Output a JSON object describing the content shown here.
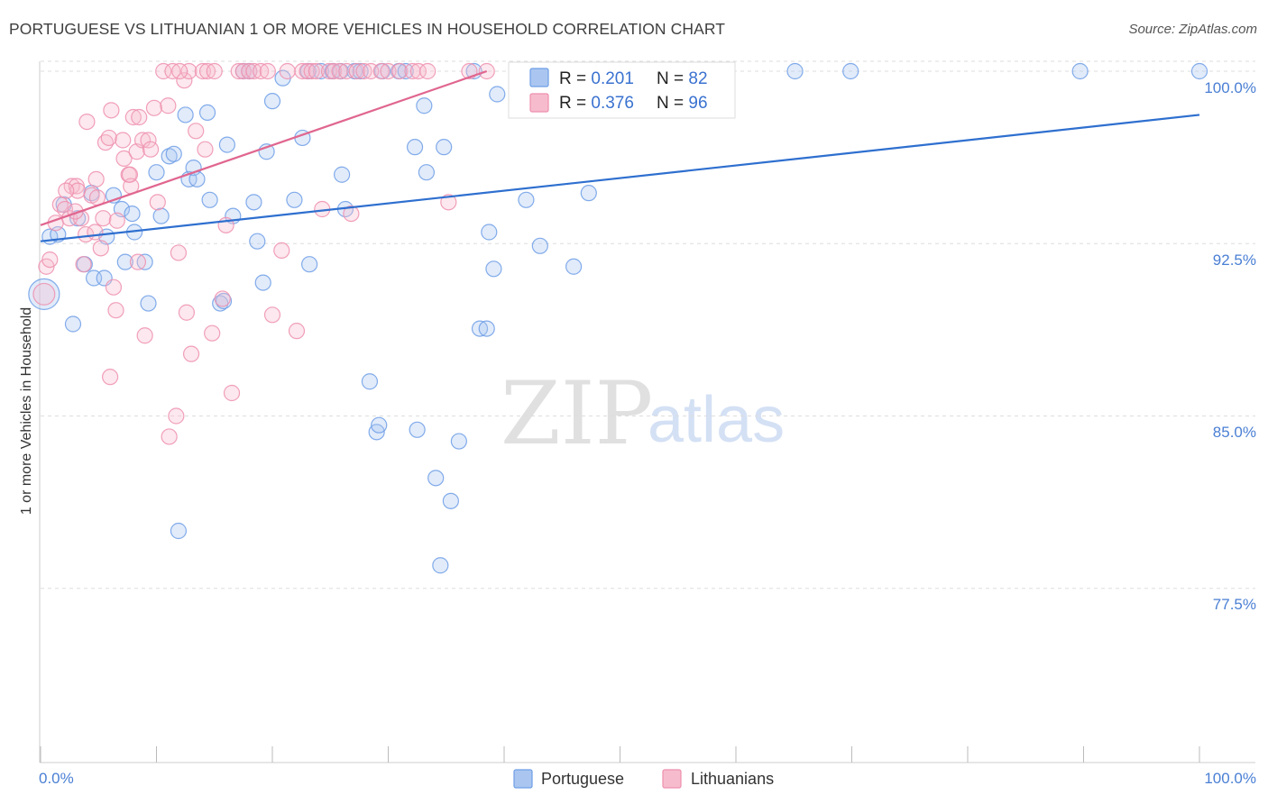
{
  "header": {
    "title": "PORTUGUESE VS LITHUANIAN 1 OR MORE VEHICLES IN HOUSEHOLD CORRELATION CHART",
    "source": "Source: ZipAtlas.com"
  },
  "watermark": {
    "part1": "ZIP",
    "part2": "atlas"
  },
  "colors": {
    "blue": "#6d9ee6",
    "blue_fill": "#aac6f0",
    "blue_line": "#2e6fcf",
    "pink": "#ee8fae",
    "pink_fill": "#f6bccd",
    "pink_line": "#e0668f",
    "tick_text": "#4a7fd4",
    "grid": "#dddddd"
  },
  "legend": {
    "rows": [
      {
        "r_label": "R = ",
        "r_value": "0.201",
        "n_label": "N = ",
        "n_value": "82",
        "series": "blue"
      },
      {
        "r_label": "R = ",
        "r_value": "0.376",
        "n_label": "N = ",
        "n_value": "96",
        "series": "pink"
      }
    ]
  },
  "bottom_legend": {
    "items": [
      "Portuguese",
      "Lithuanians"
    ]
  },
  "chart_data": {
    "type": "scatter",
    "title": "PORTUGUESE VS LITHUANIAN 1 OR MORE VEHICLES IN HOUSEHOLD CORRELATION CHART",
    "xlabel": "",
    "ylabel": "1 or more Vehicles in Household",
    "xlim": [
      0,
      100
    ],
    "ylim": [
      70.5,
      100.8
    ],
    "x_tick_labels": [
      "0.0%",
      "100.0%"
    ],
    "y_ticks": [
      {
        "value": 100.0,
        "label": "100.0%"
      },
      {
        "value": 92.5,
        "label": "92.5%"
      },
      {
        "value": 85.0,
        "label": "85.0%"
      },
      {
        "value": 77.5,
        "label": "77.5%"
      }
    ],
    "grid": true,
    "legend_position": "top-center",
    "series": [
      {
        "name": "Portuguese",
        "color": "blue",
        "R": 0.201,
        "N": 82,
        "trend": [
          [
            0,
            92.6
          ],
          [
            100,
            98.1
          ]
        ],
        "points": [
          [
            0.3,
            90.3,
            2
          ],
          [
            0.8,
            92.8,
            1
          ],
          [
            1.5,
            92.9,
            1
          ],
          [
            2.8,
            89.0,
            1
          ],
          [
            3.2,
            93.6,
            1
          ],
          [
            3.8,
            91.6,
            1
          ],
          [
            4.4,
            94.7,
            1
          ],
          [
            4.6,
            91.0,
            1
          ],
          [
            5.5,
            91.0,
            1
          ],
          [
            5.7,
            92.8,
            1
          ],
          [
            6.3,
            94.6,
            1
          ],
          [
            7.0,
            94.0,
            1
          ],
          [
            7.3,
            91.7,
            1
          ],
          [
            7.9,
            93.8,
            1
          ],
          [
            8.1,
            93.0,
            1
          ],
          [
            9.0,
            91.7,
            1
          ],
          [
            9.3,
            89.9,
            1
          ],
          [
            10.0,
            95.6,
            1
          ],
          [
            10.4,
            93.7,
            1
          ],
          [
            11.1,
            96.3,
            1
          ],
          [
            11.5,
            96.4,
            1
          ],
          [
            11.9,
            80.0,
            1
          ],
          [
            12.5,
            98.1,
            1
          ],
          [
            12.8,
            95.3,
            1
          ],
          [
            13.2,
            95.8,
            1
          ],
          [
            13.5,
            95.3,
            1
          ],
          [
            14.4,
            98.2,
            1
          ],
          [
            14.6,
            94.4,
            1
          ],
          [
            15.5,
            89.9,
            1
          ],
          [
            15.8,
            90.0,
            1
          ],
          [
            16.1,
            96.8,
            1
          ],
          [
            16.6,
            93.7,
            1
          ],
          [
            17.5,
            100.0,
            1
          ],
          [
            18.0,
            100.0,
            1
          ],
          [
            18.4,
            94.3,
            1
          ],
          [
            18.7,
            92.6,
            1
          ],
          [
            19.2,
            90.8,
            1
          ],
          [
            19.5,
            96.5,
            1
          ],
          [
            20.0,
            98.7,
            1
          ],
          [
            20.9,
            99.7,
            1
          ],
          [
            21.9,
            94.4,
            1
          ],
          [
            22.6,
            97.1,
            1
          ],
          [
            23.1,
            100.0,
            1
          ],
          [
            23.2,
            91.6,
            1
          ],
          [
            24.2,
            100.0,
            1
          ],
          [
            25.2,
            100.0,
            1
          ],
          [
            25.9,
            100.0,
            1
          ],
          [
            26.0,
            95.5,
            1
          ],
          [
            26.3,
            94.0,
            1
          ],
          [
            27.1,
            100.0,
            1
          ],
          [
            27.6,
            100.0,
            1
          ],
          [
            28.4,
            86.5,
            1
          ],
          [
            29.0,
            84.3,
            1
          ],
          [
            29.2,
            84.6,
            1
          ],
          [
            29.5,
            100.0,
            1
          ],
          [
            30.9,
            100.0,
            1
          ],
          [
            31.5,
            100.0,
            1
          ],
          [
            32.3,
            96.7,
            1
          ],
          [
            32.5,
            84.4,
            1
          ],
          [
            33.1,
            98.5,
            1
          ],
          [
            33.3,
            95.6,
            1
          ],
          [
            34.1,
            82.3,
            1
          ],
          [
            34.5,
            78.5,
            1
          ],
          [
            34.8,
            96.7,
            1
          ],
          [
            35.4,
            81.3,
            1
          ],
          [
            36.1,
            83.9,
            1
          ],
          [
            37.4,
            100.0,
            1
          ],
          [
            37.9,
            88.8,
            1
          ],
          [
            38.5,
            88.8,
            1
          ],
          [
            38.7,
            93.0,
            1
          ],
          [
            39.1,
            91.4,
            1
          ],
          [
            39.4,
            99.0,
            1
          ],
          [
            41.9,
            94.4,
            1
          ],
          [
            43.1,
            92.4,
            1
          ],
          [
            46.0,
            91.5,
            1
          ],
          [
            47.3,
            94.7,
            1
          ],
          [
            48.2,
            100.0,
            1
          ],
          [
            65.1,
            100.0,
            1
          ],
          [
            69.9,
            100.0,
            1
          ],
          [
            89.7,
            100.0,
            1
          ],
          [
            100.0,
            100.0,
            1
          ],
          [
            2.0,
            94.2,
            1
          ]
        ]
      },
      {
        "name": "Lithuanians",
        "color": "pink",
        "R": 0.376,
        "N": 96,
        "trend": [
          [
            0,
            93.3
          ],
          [
            38.5,
            100.0
          ]
        ],
        "points": [
          [
            0.3,
            90.3,
            1.4
          ],
          [
            0.5,
            91.5,
            1
          ],
          [
            0.8,
            91.8,
            1
          ],
          [
            1.3,
            93.4,
            1
          ],
          [
            1.7,
            94.2,
            1
          ],
          [
            2.1,
            94.0,
            1
          ],
          [
            2.5,
            93.6,
            1
          ],
          [
            2.7,
            95.0,
            1
          ],
          [
            3.1,
            95.0,
            1
          ],
          [
            3.2,
            94.8,
            1
          ],
          [
            3.5,
            93.6,
            1
          ],
          [
            3.7,
            91.6,
            1
          ],
          [
            3.9,
            92.9,
            1
          ],
          [
            4.0,
            97.8,
            1
          ],
          [
            4.4,
            94.6,
            1
          ],
          [
            4.7,
            93.0,
            1
          ],
          [
            4.8,
            95.3,
            1
          ],
          [
            4.9,
            94.5,
            1
          ],
          [
            5.2,
            92.3,
            1
          ],
          [
            5.4,
            93.6,
            1
          ],
          [
            5.6,
            96.9,
            1
          ],
          [
            5.9,
            97.1,
            1
          ],
          [
            6.1,
            98.3,
            1
          ],
          [
            6.3,
            90.6,
            1
          ],
          [
            6.5,
            89.6,
            1
          ],
          [
            6.6,
            93.5,
            1
          ],
          [
            7.1,
            97.0,
            1
          ],
          [
            7.2,
            96.2,
            1
          ],
          [
            7.6,
            95.5,
            1
          ],
          [
            7.8,
            95.0,
            1
          ],
          [
            8.0,
            98.0,
            1
          ],
          [
            8.3,
            96.5,
            1
          ],
          [
            8.4,
            91.7,
            1
          ],
          [
            8.5,
            98.0,
            1
          ],
          [
            8.8,
            97.0,
            1
          ],
          [
            9.0,
            88.5,
            1
          ],
          [
            9.3,
            97.0,
            1
          ],
          [
            9.5,
            96.6,
            1
          ],
          [
            9.8,
            98.4,
            1
          ],
          [
            10.1,
            94.3,
            1
          ],
          [
            10.6,
            100.0,
            1
          ],
          [
            11.0,
            98.5,
            1
          ],
          [
            11.1,
            84.1,
            1
          ],
          [
            11.4,
            100.0,
            1
          ],
          [
            11.7,
            85.0,
            1
          ],
          [
            11.9,
            92.1,
            1
          ],
          [
            12.4,
            99.6,
            1
          ],
          [
            12.6,
            89.5,
            1
          ],
          [
            12.8,
            100.0,
            1
          ],
          [
            13.0,
            87.7,
            1
          ],
          [
            13.4,
            97.4,
            1
          ],
          [
            14.0,
            100.0,
            1
          ],
          [
            14.2,
            96.6,
            1
          ],
          [
            14.4,
            100.0,
            1
          ],
          [
            14.8,
            88.6,
            1
          ],
          [
            15.7,
            90.1,
            1
          ],
          [
            16.0,
            93.3,
            1
          ],
          [
            16.5,
            86.0,
            1
          ],
          [
            17.1,
            100.0,
            1
          ],
          [
            17.5,
            100.0,
            1
          ],
          [
            18.0,
            100.0,
            1
          ],
          [
            18.4,
            100.0,
            1
          ],
          [
            19.0,
            100.0,
            1
          ],
          [
            19.6,
            100.0,
            1
          ],
          [
            20.0,
            89.4,
            1
          ],
          [
            20.8,
            92.2,
            1
          ],
          [
            21.3,
            100.0,
            1
          ],
          [
            22.1,
            88.7,
            1
          ],
          [
            22.6,
            100.0,
            1
          ],
          [
            23.0,
            100.0,
            1
          ],
          [
            23.4,
            100.0,
            1
          ],
          [
            23.8,
            100.0,
            1
          ],
          [
            24.3,
            94.0,
            1
          ],
          [
            24.9,
            100.0,
            1
          ],
          [
            25.3,
            100.0,
            1
          ],
          [
            25.8,
            100.0,
            1
          ],
          [
            26.4,
            100.0,
            1
          ],
          [
            26.8,
            93.8,
            1
          ],
          [
            27.3,
            100.0,
            1
          ],
          [
            27.9,
            100.0,
            1
          ],
          [
            28.5,
            100.0,
            1
          ],
          [
            29.4,
            100.0,
            1
          ],
          [
            30.0,
            100.0,
            1
          ],
          [
            31.0,
            100.0,
            1
          ],
          [
            32.1,
            100.0,
            1
          ],
          [
            32.6,
            100.0,
            1
          ],
          [
            33.4,
            100.0,
            1
          ],
          [
            35.2,
            94.3,
            1
          ],
          [
            37.0,
            100.0,
            1
          ],
          [
            38.5,
            100.0,
            1
          ],
          [
            3.0,
            93.9,
            1
          ],
          [
            6.0,
            86.7,
            1
          ],
          [
            7.7,
            95.5,
            1
          ],
          [
            12.0,
            100.0,
            1
          ],
          [
            15.0,
            100.0,
            1
          ],
          [
            2.2,
            94.8,
            1
          ]
        ]
      }
    ]
  }
}
